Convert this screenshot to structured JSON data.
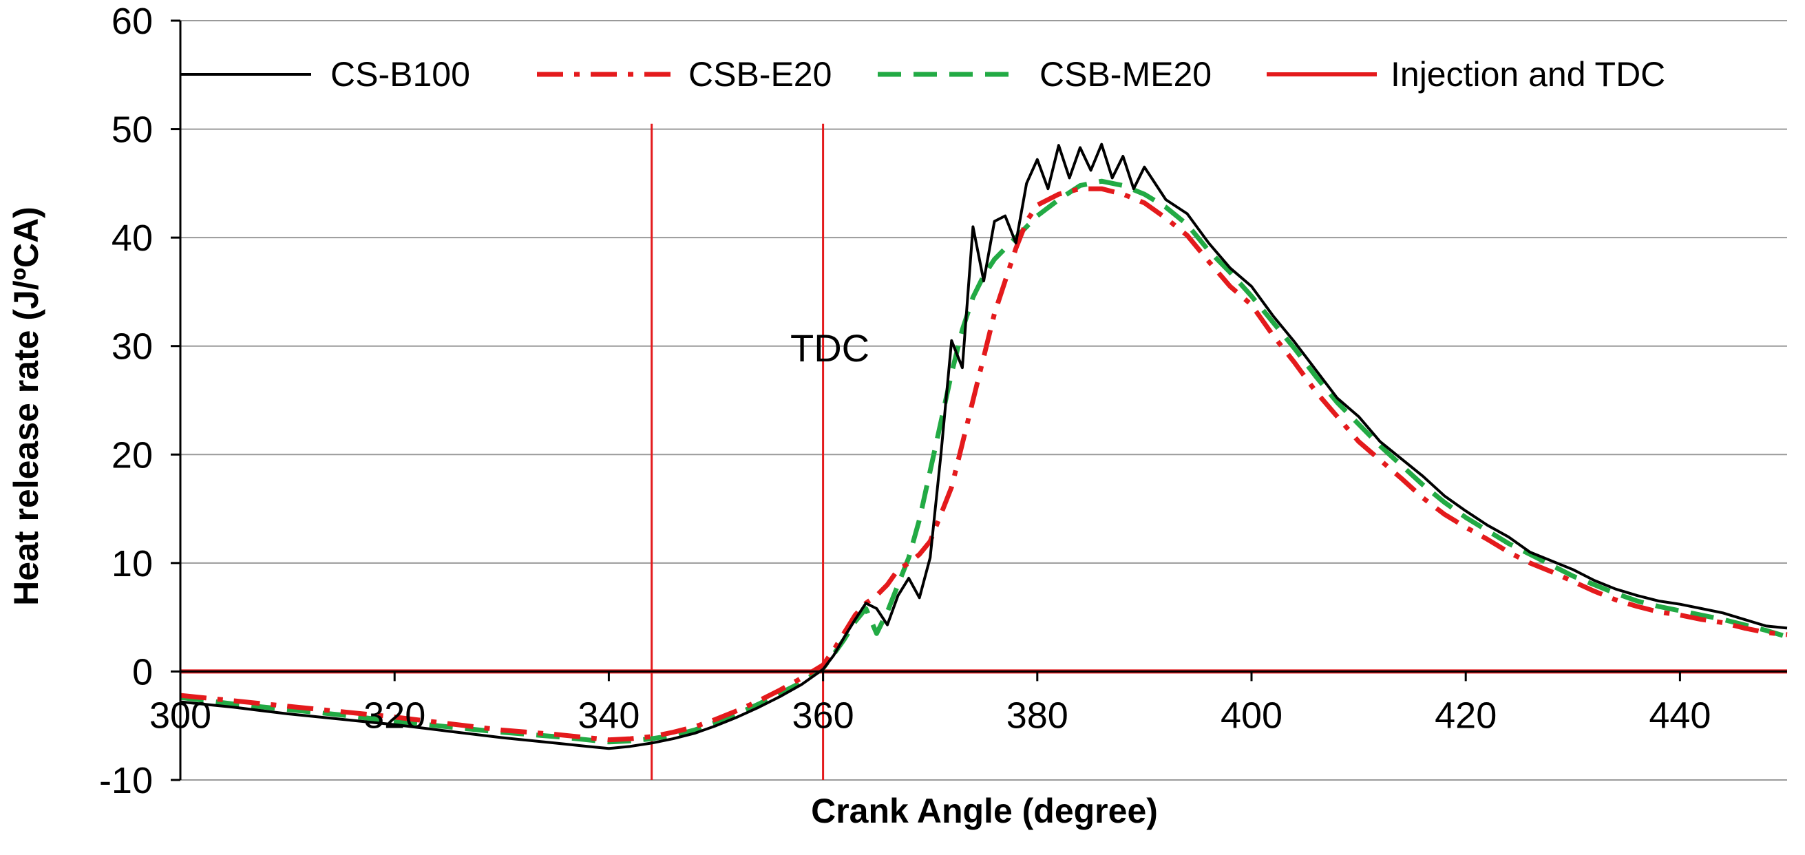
{
  "chart_data": {
    "type": "line",
    "title": "",
    "xlabel": "Crank Angle  (degree)",
    "ylabel": "Heat release rate (J/ºCA)",
    "xlim": [
      300,
      450
    ],
    "ylim": [
      -10,
      60
    ],
    "x_ticks": [
      300,
      320,
      340,
      360,
      380,
      400,
      420,
      440
    ],
    "y_ticks": [
      -10,
      0,
      10,
      20,
      30,
      40,
      50,
      60
    ],
    "grid": "horizontal",
    "legend_position": "top",
    "annotations": [
      {
        "text": "TDC",
        "x": 361,
        "y": 30
      }
    ],
    "vertical_markers": [
      {
        "x": 344,
        "color": "#e41a1c"
      },
      {
        "x": 360,
        "color": "#e41a1c"
      }
    ],
    "series": [
      {
        "name": "CS-B100",
        "color": "#000000",
        "style": "solid",
        "x": [
          300,
          305,
          310,
          315,
          320,
          325,
          330,
          335,
          338,
          340,
          342,
          344,
          346,
          348,
          350,
          352,
          354,
          356,
          358,
          360,
          361,
          362,
          363,
          364,
          365,
          366,
          367,
          368,
          369,
          370,
          371,
          372,
          373,
          374,
          375,
          376,
          377,
          378,
          379,
          380,
          381,
          382,
          383,
          384,
          385,
          386,
          387,
          388,
          389,
          390,
          392,
          394,
          396,
          398,
          400,
          402,
          404,
          406,
          408,
          410,
          412,
          414,
          416,
          418,
          420,
          422,
          424,
          426,
          428,
          430,
          432,
          434,
          436,
          438,
          440,
          442,
          444,
          446,
          448,
          450
        ],
        "y": [
          -2.8,
          -3.3,
          -3.9,
          -4.4,
          -4.9,
          -5.5,
          -6.1,
          -6.6,
          -6.9,
          -7.1,
          -6.9,
          -6.6,
          -6.2,
          -5.7,
          -5.0,
          -4.2,
          -3.3,
          -2.3,
          -1.2,
          0.2,
          1.5,
          3.2,
          4.8,
          6.3,
          5.8,
          4.3,
          7.0,
          8.6,
          6.8,
          10.5,
          20.0,
          30.5,
          28.0,
          41.0,
          36.0,
          41.5,
          42.0,
          39.5,
          45.0,
          47.2,
          44.5,
          48.5,
          45.5,
          48.3,
          46.2,
          48.6,
          45.5,
          47.5,
          44.5,
          46.5,
          43.5,
          42.2,
          39.5,
          37.2,
          35.5,
          32.8,
          30.4,
          27.8,
          25.2,
          23.5,
          21.2,
          19.6,
          18.0,
          16.2,
          14.8,
          13.5,
          12.4,
          11.0,
          10.2,
          9.4,
          8.4,
          7.6,
          7.0,
          6.5,
          6.2,
          5.8,
          5.4,
          4.8,
          4.2,
          4.0
        ]
      },
      {
        "name": "CSB-E20",
        "color": "#e41a1c",
        "style": "dashdot",
        "x": [
          300,
          305,
          310,
          315,
          320,
          325,
          330,
          335,
          338,
          340,
          342,
          344,
          346,
          348,
          350,
          352,
          354,
          356,
          358,
          360,
          361,
          362,
          363,
          364,
          365,
          366,
          367,
          368,
          369,
          370,
          371,
          372,
          373,
          374,
          375,
          376,
          377,
          378,
          379,
          380,
          382,
          384,
          386,
          388,
          390,
          392,
          394,
          396,
          398,
          400,
          402,
          404,
          406,
          408,
          410,
          412,
          414,
          416,
          418,
          420,
          422,
          424,
          426,
          428,
          430,
          432,
          434,
          436,
          438,
          440,
          442,
          444,
          446,
          448,
          450
        ],
        "y": [
          -2.2,
          -2.7,
          -3.2,
          -3.7,
          -4.2,
          -4.8,
          -5.4,
          -5.8,
          -6.1,
          -6.3,
          -6.2,
          -6.0,
          -5.6,
          -5.1,
          -4.4,
          -3.6,
          -2.7,
          -1.7,
          -0.6,
          0.6,
          2.0,
          3.6,
          5.2,
          6.3,
          7.0,
          8.0,
          9.4,
          10.0,
          10.8,
          12.0,
          14.5,
          17.0,
          21.0,
          25.0,
          29.0,
          33.0,
          36.0,
          39.0,
          41.5,
          43.0,
          44.0,
          44.5,
          44.5,
          44.0,
          43.2,
          41.8,
          40.2,
          37.8,
          35.5,
          33.8,
          31.0,
          28.5,
          25.8,
          23.5,
          21.2,
          19.5,
          17.8,
          16.0,
          14.5,
          13.3,
          12.2,
          11.0,
          10.0,
          9.2,
          8.3,
          7.4,
          6.6,
          6.0,
          5.5,
          5.2,
          4.8,
          4.5,
          4.0,
          3.6,
          3.4
        ]
      },
      {
        "name": "CSB-ME20",
        "color": "#22aa44",
        "style": "dashed",
        "x": [
          300,
          305,
          310,
          315,
          320,
          325,
          330,
          335,
          338,
          340,
          342,
          344,
          346,
          348,
          350,
          352,
          354,
          356,
          358,
          360,
          361,
          362,
          363,
          364,
          365,
          366,
          367,
          368,
          369,
          370,
          371,
          372,
          373,
          374,
          375,
          376,
          377,
          378,
          379,
          380,
          382,
          384,
          386,
          388,
          390,
          392,
          394,
          396,
          398,
          400,
          402,
          404,
          406,
          408,
          410,
          412,
          414,
          416,
          418,
          420,
          422,
          424,
          426,
          428,
          430,
          432,
          434,
          436,
          438,
          440,
          442,
          444,
          446,
          448,
          450
        ],
        "y": [
          -2.4,
          -3.0,
          -3.5,
          -4.0,
          -4.6,
          -5.1,
          -5.6,
          -6.0,
          -6.3,
          -6.5,
          -6.4,
          -6.2,
          -5.9,
          -5.4,
          -4.7,
          -3.9,
          -3.0,
          -2.0,
          -1.0,
          0.3,
          1.6,
          3.0,
          4.6,
          5.8,
          3.5,
          5.5,
          8.0,
          10.5,
          14.0,
          18.5,
          23.0,
          27.5,
          31.5,
          34.5,
          36.5,
          38.0,
          39.0,
          40.0,
          41.0,
          42.0,
          43.5,
          44.8,
          45.2,
          44.8,
          44.0,
          42.8,
          41.2,
          38.8,
          36.8,
          34.6,
          32.2,
          29.8,
          27.2,
          24.8,
          22.8,
          20.8,
          19.0,
          17.2,
          15.6,
          14.2,
          13.0,
          11.8,
          10.8,
          9.8,
          8.8,
          8.0,
          7.2,
          6.5,
          6.0,
          5.6,
          5.2,
          4.8,
          4.3,
          3.8,
          3.2
        ]
      },
      {
        "name": "Injection and TDC",
        "color": "#e41a1c",
        "style": "solid",
        "x": [
          300,
          450
        ],
        "y": [
          0,
          0
        ]
      }
    ]
  }
}
